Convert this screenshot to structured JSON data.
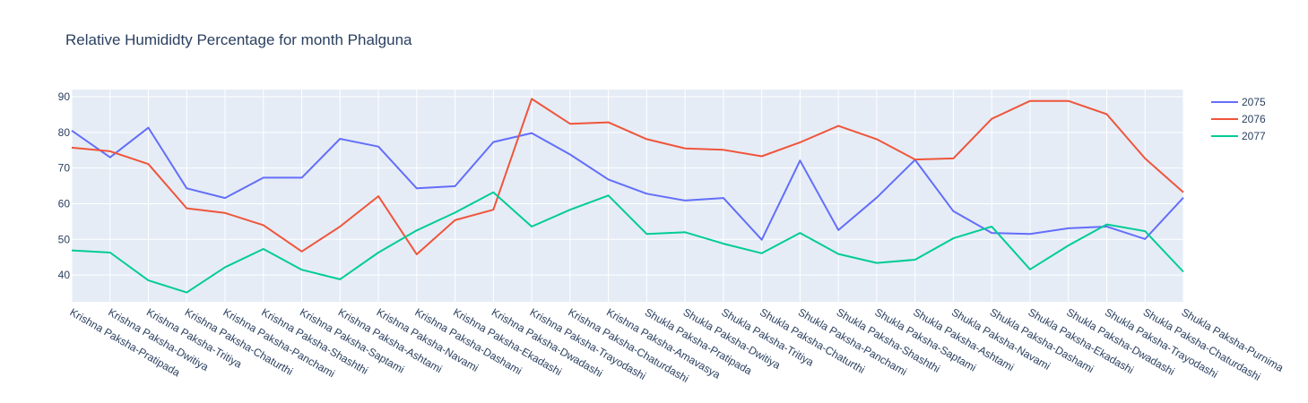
{
  "chart_data": {
    "type": "line",
    "title": "Relative Humididty Percentage for month Phalguna",
    "xlabel": "",
    "ylabel": "",
    "ylim": [
      32.5,
      92
    ],
    "yticks": [
      40,
      50,
      60,
      70,
      80,
      90
    ],
    "grid": true,
    "legend_position": "top-right",
    "categories": [
      "Krishna Paksha-Pratipada",
      "Krishna Paksha-Dwitiya",
      "Krishna Paksha-Tritiya",
      "Krishna Paksha-Chaturthi",
      "Krishna Paksha-Panchami",
      "Krishna Paksha-Shashthi",
      "Krishna Paksha-Saptami",
      "Krishna Paksha-Ashtami",
      "Krishna Paksha-Navami",
      "Krishna Paksha-Dashami",
      "Krishna Paksha-Ekadashi",
      "Krishna Paksha-Dwadashi",
      "Krishna Paksha-Trayodashi",
      "Krishna Paksha-Chaturdashi",
      "Krishna Paksha-Amavasya",
      "Shukla Paksha-Pratipada",
      "Shukla Paksha-Dwitiya",
      "Shukla Paksha-Tritiya",
      "Shukla Paksha-Chaturthi",
      "Shukla Paksha-Panchami",
      "Shukla Paksha-Shashthi",
      "Shukla Paksha-Saptami",
      "Shukla Paksha-Ashtami",
      "Shukla Paksha-Navami",
      "Shukla Paksha-Dashami",
      "Shukla Paksha-Ekadashi",
      "Shukla Paksha-Dwadashi",
      "Shukla Paksha-Trayodashi",
      "Shukla Paksha-Chaturdashi",
      "Shukla Paksha-Purnima"
    ],
    "series": [
      {
        "name": "2075",
        "color": "#636efa",
        "values": [
          80.5,
          73,
          81.3,
          64.3,
          61.6,
          67.3,
          67.3,
          78.2,
          76,
          64.3,
          64.9,
          77.3,
          79.8,
          73.8,
          66.8,
          62.8,
          60.9,
          61.6,
          49.9,
          72.1,
          52.6,
          61.7,
          72.3,
          57.9,
          51.8,
          51.5,
          53.1,
          53.6,
          50.1,
          61.7
        ]
      },
      {
        "name": "2076",
        "color": "#ef553b",
        "values": [
          75.7,
          74.7,
          71.1,
          58.7,
          57.4,
          54,
          46.6,
          53.6,
          62.1,
          45.8,
          55.4,
          58.3,
          89.4,
          82.4,
          82.8,
          78.1,
          75.5,
          75.1,
          73.3,
          77.2,
          81.8,
          78.1,
          72.4,
          72.7,
          83.8,
          88.8,
          88.8,
          85.1,
          72.7,
          63.2
        ]
      },
      {
        "name": "2077",
        "color": "#00cc96",
        "values": [
          46.9,
          46.3,
          38.5,
          35.1,
          42.2,
          47.3,
          41.5,
          38.8,
          46.3,
          52.5,
          57.5,
          63.2,
          53.6,
          58.3,
          62.3,
          51.5,
          52,
          48.8,
          46.1,
          51.8,
          45.9,
          43.4,
          44.3,
          50.3,
          53.6,
          41.6,
          48.3,
          54.2,
          52.3,
          40.9
        ]
      }
    ]
  }
}
